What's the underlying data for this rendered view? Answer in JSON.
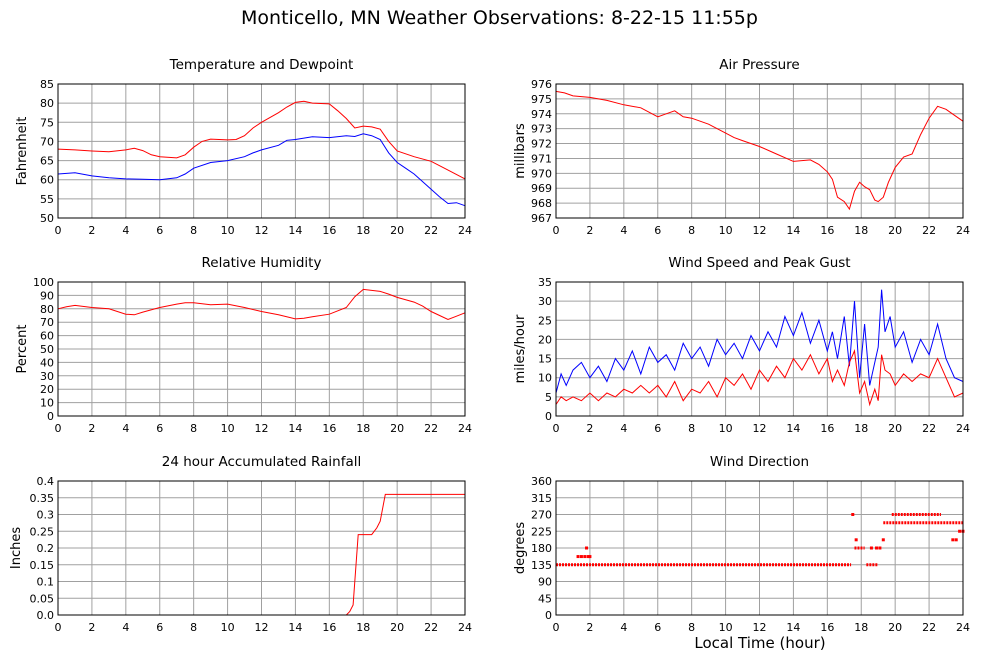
{
  "title": "Monticello, MN Weather Observations: 8-22-15 11:55p",
  "global_xlabel": "Local Time (hour)",
  "colors": {
    "red": "#ff0000",
    "blue": "#0000ff",
    "grid": "#a0a0a0",
    "frame": "#000000"
  },
  "chart_data": [
    {
      "id": "temp",
      "type": "line",
      "title": "Temperature and Dewpoint",
      "ylabel": "Fahrenheit",
      "xlim": [
        0,
        24
      ],
      "ylim": [
        50,
        85
      ],
      "xticks": [
        0,
        2,
        4,
        6,
        8,
        10,
        12,
        14,
        16,
        18,
        20,
        22,
        24
      ],
      "yticks": [
        50,
        55,
        60,
        65,
        70,
        75,
        80,
        85
      ],
      "grid": true,
      "series": [
        {
          "color": "#ff0000",
          "x": [
            0,
            1,
            2,
            3,
            4,
            4.5,
            5,
            5.5,
            6,
            7,
            7.5,
            8,
            8.5,
            9,
            10,
            10.5,
            11,
            11.5,
            12,
            13,
            13.5,
            14,
            14.5,
            15,
            16,
            16.5,
            17,
            17.5,
            18,
            18.5,
            19,
            19.5,
            20,
            21,
            22,
            23,
            24
          ],
          "y": [
            68,
            67.8,
            67.5,
            67.3,
            67.8,
            68.2,
            67.6,
            66.5,
            66,
            65.7,
            66.5,
            68.5,
            70,
            70.6,
            70.4,
            70.5,
            71.5,
            73.5,
            75,
            77.5,
            79,
            80.2,
            80.5,
            80,
            79.8,
            78,
            76,
            73.5,
            74,
            73.8,
            73.2,
            70,
            67.5,
            66,
            64.8,
            62.5,
            60.2
          ]
        },
        {
          "color": "#0000ff",
          "x": [
            0,
            1,
            2,
            3,
            4,
            5,
            6,
            7,
            7.5,
            8,
            9,
            10,
            11,
            11.5,
            12,
            13,
            13.5,
            14,
            15,
            16,
            17,
            17.5,
            18,
            18.5,
            19,
            19.5,
            20,
            20.5,
            21,
            22,
            22.5,
            23,
            23.5,
            24
          ],
          "y": [
            61.5,
            61.8,
            61,
            60.5,
            60.2,
            60.1,
            60,
            60.5,
            61.5,
            63,
            64.5,
            65,
            66,
            67,
            67.8,
            69,
            70.3,
            70.5,
            71.2,
            71,
            71.5,
            71.3,
            72,
            71.5,
            70.5,
            67,
            64.5,
            63,
            61.5,
            57.5,
            55.5,
            53.8,
            54,
            53.2
          ]
        }
      ]
    },
    {
      "id": "pressure",
      "type": "line",
      "title": "Air Pressure",
      "ylabel": "millibars",
      "xlim": [
        0,
        24
      ],
      "ylim": [
        967,
        976
      ],
      "xticks": [
        0,
        2,
        4,
        6,
        8,
        10,
        12,
        14,
        16,
        18,
        20,
        22,
        24
      ],
      "yticks": [
        967,
        968,
        969,
        970,
        971,
        972,
        973,
        974,
        975,
        976
      ],
      "grid": true,
      "series": [
        {
          "color": "#ff0000",
          "x": [
            0,
            0.5,
            1,
            2,
            3,
            4,
            5,
            6,
            6.5,
            7,
            7.5,
            8,
            9,
            10,
            10.5,
            11,
            12,
            13,
            14,
            15,
            15.5,
            16,
            16.3,
            16.6,
            17,
            17.3,
            17.6,
            17.9,
            18.2,
            18.5,
            18.8,
            19,
            19.3,
            19.6,
            20,
            20.5,
            21,
            21.5,
            22,
            22.5,
            23,
            23.5,
            24
          ],
          "y": [
            975.5,
            975.4,
            975.2,
            975.1,
            974.9,
            974.6,
            974.4,
            973.8,
            974,
            974.2,
            973.8,
            973.7,
            973.3,
            972.7,
            972.4,
            972.2,
            971.8,
            971.3,
            970.8,
            970.9,
            970.6,
            970.1,
            969.6,
            968.4,
            968.1,
            967.6,
            968.8,
            969.4,
            969.1,
            968.9,
            968.2,
            968.1,
            968.4,
            969.4,
            970.4,
            971.1,
            971.3,
            972.6,
            973.7,
            974.5,
            974.3,
            973.9,
            973.5
          ]
        }
      ]
    },
    {
      "id": "humidity",
      "type": "line",
      "title": "Relative Humidity",
      "ylabel": "Percent",
      "xlim": [
        0,
        24
      ],
      "ylim": [
        0,
        100
      ],
      "xticks": [
        0,
        2,
        4,
        6,
        8,
        10,
        12,
        14,
        16,
        18,
        20,
        22,
        24
      ],
      "yticks": [
        0,
        10,
        20,
        30,
        40,
        50,
        60,
        70,
        80,
        90,
        100
      ],
      "grid": true,
      "series": [
        {
          "color": "#ff0000",
          "x": [
            0,
            0.5,
            1,
            2,
            3,
            4,
            4.5,
            5,
            6,
            7,
            7.5,
            8,
            9,
            10,
            11,
            12,
            13,
            14,
            14.5,
            15,
            16,
            17,
            17.5,
            18,
            19,
            19.5,
            20,
            21,
            21.5,
            22,
            22.5,
            23,
            23.5,
            24
          ],
          "y": [
            80,
            81.5,
            82.5,
            81,
            80,
            76,
            75.5,
            77.5,
            81,
            83.5,
            84.5,
            84.5,
            83,
            83.5,
            81,
            78,
            75.5,
            72.5,
            73,
            74,
            76,
            81,
            89,
            94.5,
            93,
            91,
            88.5,
            85,
            82,
            78,
            75,
            72,
            74.5,
            77
          ]
        }
      ]
    },
    {
      "id": "wind",
      "type": "line",
      "title": "Wind Speed and Peak Gust",
      "ylabel": "miles/hour",
      "xlim": [
        0,
        24
      ],
      "ylim": [
        0,
        35
      ],
      "xticks": [
        0,
        2,
        4,
        6,
        8,
        10,
        12,
        14,
        16,
        18,
        20,
        22,
        24
      ],
      "yticks": [
        0,
        5,
        10,
        15,
        20,
        25,
        30,
        35
      ],
      "grid": true,
      "series": [
        {
          "color": "#0000ff",
          "x": [
            0,
            0.3,
            0.6,
            1,
            1.5,
            2,
            2.5,
            3,
            3.5,
            4,
            4.5,
            5,
            5.5,
            6,
            6.5,
            7,
            7.5,
            8,
            8.5,
            9,
            9.5,
            10,
            10.5,
            11,
            11.5,
            12,
            12.5,
            13,
            13.5,
            14,
            14.5,
            15,
            15.5,
            16,
            16.3,
            16.6,
            17,
            17.3,
            17.6,
            17.9,
            18.2,
            18.5,
            18.8,
            19,
            19.2,
            19.4,
            19.7,
            20,
            20.5,
            21,
            21.5,
            22,
            22.5,
            23,
            23.5,
            24
          ],
          "y": [
            6,
            11,
            8,
            12,
            14,
            10,
            13,
            9,
            15,
            12,
            17,
            11,
            18,
            14,
            16,
            12,
            19,
            15,
            18,
            13,
            20,
            16,
            19,
            15,
            21,
            17,
            22,
            18,
            26,
            21,
            27,
            19,
            25,
            17,
            22,
            15,
            26,
            13,
            30,
            10,
            24,
            8,
            14,
            18,
            33,
            22,
            26,
            18,
            22,
            14,
            20,
            16,
            24,
            15,
            10,
            9
          ]
        },
        {
          "color": "#ff0000",
          "x": [
            0,
            0.3,
            0.6,
            1,
            1.5,
            2,
            2.5,
            3,
            3.5,
            4,
            4.5,
            5,
            5.5,
            6,
            6.5,
            7,
            7.5,
            8,
            8.5,
            9,
            9.5,
            10,
            10.5,
            11,
            11.5,
            12,
            12.5,
            13,
            13.5,
            14,
            14.5,
            15,
            15.5,
            16,
            16.3,
            16.6,
            17,
            17.3,
            17.6,
            17.9,
            18.2,
            18.5,
            18.8,
            19,
            19.2,
            19.4,
            19.7,
            20,
            20.5,
            21,
            21.5,
            22,
            22.5,
            23,
            23.5,
            24
          ],
          "y": [
            3,
            5,
            4,
            5,
            4,
            6,
            4,
            6,
            5,
            7,
            6,
            8,
            6,
            8,
            5,
            9,
            4,
            7,
            6,
            9,
            5,
            10,
            8,
            11,
            7,
            12,
            9,
            13,
            10,
            15,
            12,
            16,
            11,
            15,
            9,
            12,
            8,
            14,
            17,
            6,
            9,
            3,
            7,
            4,
            16,
            12,
            11,
            8,
            11,
            9,
            11,
            10,
            15,
            10,
            5,
            6
          ]
        }
      ]
    },
    {
      "id": "rain",
      "type": "line",
      "title": "24 hour Accumulated Rainfall",
      "ylabel": "Inches",
      "xlim": [
        0,
        24
      ],
      "ylim": [
        0,
        0.4
      ],
      "xticks": [
        0,
        2,
        4,
        6,
        8,
        10,
        12,
        14,
        16,
        18,
        20,
        22,
        24
      ],
      "yticks": [
        0.0,
        0.05,
        0.1,
        0.15,
        0.2,
        0.25,
        0.3,
        0.35,
        0.4
      ],
      "ytick_labels": [
        "0.0",
        "0.05",
        "0.1",
        "0.15",
        "0.2",
        "0.25",
        "0.3",
        "0.35",
        "0.4"
      ],
      "grid": true,
      "series": [
        {
          "color": "#ff0000",
          "x": [
            0,
            17,
            17.2,
            17.4,
            17.7,
            18,
            18.5,
            18.8,
            19,
            19.3,
            20,
            24
          ],
          "y": [
            0,
            0,
            0.01,
            0.03,
            0.24,
            0.24,
            0.24,
            0.26,
            0.28,
            0.36,
            0.36,
            0.36
          ]
        }
      ]
    },
    {
      "id": "direction",
      "type": "scatter",
      "title": "Wind Direction",
      "ylabel": "degrees",
      "xlim": [
        0,
        24
      ],
      "ylim": [
        0,
        360
      ],
      "xticks": [
        0,
        2,
        4,
        6,
        8,
        10,
        12,
        14,
        16,
        18,
        20,
        22,
        24
      ],
      "yticks": [
        0,
        45,
        90,
        135,
        180,
        225,
        270,
        315,
        360
      ],
      "grid": true,
      "series": [
        {
          "color": "#ff0000",
          "segments": [
            {
              "x0": 0,
              "x1": 17.4,
              "y": 135
            },
            {
              "x0": 17.6,
              "x1": 18.2,
              "y": 180
            },
            {
              "x0": 18.3,
              "x1": 19.0,
              "y": 135
            },
            {
              "x0": 19.3,
              "x1": 24,
              "y": 248
            },
            {
              "x0": 19.8,
              "x1": 22.7,
              "y": 270
            }
          ],
          "x": [
            1.3,
            1.5,
            1.7,
            1.9,
            2.0,
            1.8,
            17.5,
            17.7,
            18.6,
            18.9,
            19.1,
            19.3,
            23.4,
            23.6,
            23.8,
            24
          ],
          "y": [
            157,
            157,
            157,
            157,
            157,
            180,
            270,
            202,
            180,
            180,
            180,
            202,
            202,
            202,
            225,
            225
          ]
        }
      ]
    }
  ]
}
